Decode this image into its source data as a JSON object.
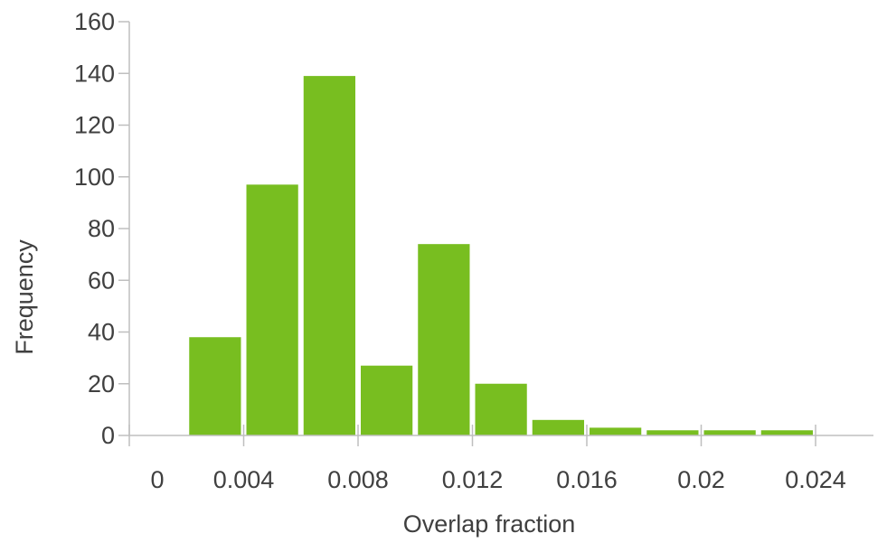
{
  "chart_data": {
    "type": "bar",
    "title": "",
    "xlabel": "Overlap fraction",
    "ylabel": "Frequency",
    "xlim": [
      0,
      0.024
    ],
    "ylim": [
      0,
      160
    ],
    "x_ticks": [
      "0",
      "0.004",
      "0.008",
      "0.012",
      "0.016",
      "0.02",
      "0.024"
    ],
    "y_ticks": [
      "0",
      "20",
      "40",
      "60",
      "80",
      "100",
      "120",
      "140",
      "160"
    ],
    "bin_width": 0.002,
    "bin_starts": [
      0.002,
      0.004,
      0.006,
      0.008,
      0.01,
      0.012,
      0.014,
      0.016,
      0.018,
      0.02,
      0.022
    ],
    "values": [
      38,
      97,
      139,
      27,
      74,
      20,
      6,
      3,
      2,
      2,
      2
    ],
    "bar_color": "#78be20",
    "grid": false,
    "legend": "none"
  }
}
